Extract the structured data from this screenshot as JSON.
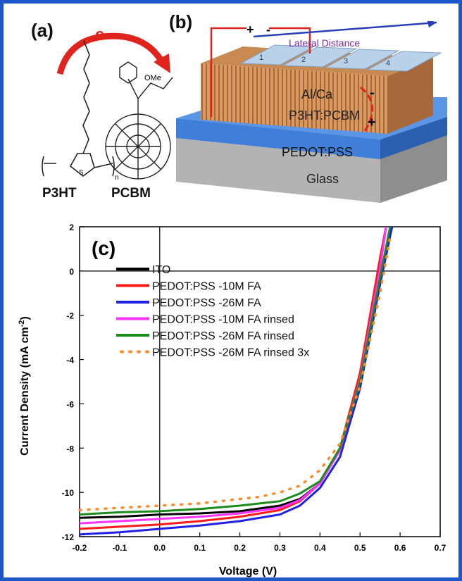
{
  "panel_a": {
    "label": "(a)",
    "arrow_text": "e-",
    "donor": "P3HT",
    "acceptor": "PCBM",
    "methyl_ester": "OMe",
    "ring_atom": "S",
    "repeat_n": "n"
  },
  "panel_b": {
    "label": "(b)",
    "plus": "+",
    "minus": "-",
    "lateral": "Lateral Distance",
    "electrode_numbers": [
      "1",
      "2",
      "3",
      "4"
    ],
    "top_layer": "Al/Ca",
    "active_layer": "P3HT:PCBM",
    "hole_layer": "PEDOT:PSS",
    "substrate": "Glass",
    "charge_minus": "-",
    "charge_plus": "+"
  },
  "chart_data": {
    "type": "line",
    "panel_label": "(c)",
    "xlabel": "Voltage (V)",
    "ylabel": "Current Density (mA cm",
    "ylabel_sup": "-2",
    "ylabel_close": ")",
    "xlim": [
      -0.2,
      0.7
    ],
    "ylim": [
      -12,
      2
    ],
    "xticks": [
      "-0.2",
      "-0.1",
      "0.0",
      "0.1",
      "0.2",
      "0.3",
      "0.4",
      "0.5",
      "0.6",
      "0.7"
    ],
    "yticks": [
      "2",
      "0",
      "-2",
      "-4",
      "-6",
      "-8",
      "-10",
      "-12"
    ],
    "legend_position": "upper-left",
    "series": [
      {
        "name": "ITO",
        "color": "#000000",
        "style": "solid",
        "x": [
          -0.2,
          -0.1,
          0.0,
          0.1,
          0.2,
          0.3,
          0.35,
          0.4,
          0.45,
          0.5,
          0.55,
          0.58
        ],
        "y": [
          -11.15,
          -11.1,
          -11.0,
          -10.95,
          -10.85,
          -10.6,
          -10.3,
          -9.6,
          -8.0,
          -4.9,
          -0.4,
          2.0
        ]
      },
      {
        "name": "PEDOT:PSS -10M FA",
        "color": "#ff1a1a",
        "style": "solid",
        "x": [
          -0.2,
          -0.1,
          0.0,
          0.1,
          0.2,
          0.3,
          0.35,
          0.4,
          0.45,
          0.5,
          0.55,
          0.565
        ],
        "y": [
          -11.65,
          -11.55,
          -11.45,
          -11.3,
          -11.1,
          -10.8,
          -10.4,
          -9.6,
          -8.0,
          -4.6,
          0.6,
          2.0
        ]
      },
      {
        "name": "PEDOT:PSS -26M FA",
        "color": "#1f1fe6",
        "style": "solid",
        "x": [
          -0.2,
          -0.1,
          0.0,
          0.1,
          0.2,
          0.3,
          0.35,
          0.4,
          0.45,
          0.5,
          0.55,
          0.58
        ],
        "y": [
          -11.9,
          -11.8,
          -11.65,
          -11.5,
          -11.3,
          -11.0,
          -10.6,
          -9.8,
          -8.4,
          -5.3,
          -0.6,
          2.0
        ]
      },
      {
        "name": "PEDOT:PSS -10M FA rinsed",
        "color": "#ff33ff",
        "style": "solid",
        "x": [
          -0.2,
          -0.1,
          0.0,
          0.1,
          0.2,
          0.3,
          0.35,
          0.4,
          0.45,
          0.5,
          0.55,
          0.565
        ],
        "y": [
          -11.4,
          -11.3,
          -11.2,
          -11.1,
          -10.95,
          -10.7,
          -10.35,
          -9.6,
          -8.1,
          -4.9,
          0.1,
          2.0
        ]
      },
      {
        "name": "PEDOT:PSS -26M FA rinsed",
        "color": "#1a8c1a",
        "style": "solid",
        "x": [
          -0.2,
          -0.1,
          0.0,
          0.1,
          0.2,
          0.3,
          0.35,
          0.4,
          0.45,
          0.5,
          0.55,
          0.575
        ],
        "y": [
          -11.0,
          -10.9,
          -10.85,
          -10.75,
          -10.6,
          -10.4,
          -10.05,
          -9.5,
          -8.0,
          -5.0,
          -0.3,
          2.0
        ]
      },
      {
        "name": "PEDOT:PSS -26M FA rinsed 3x",
        "color": "#ff8a2a",
        "style": "dotted",
        "x": [
          -0.2,
          -0.15,
          -0.1,
          -0.05,
          0.0,
          0.05,
          0.1,
          0.15,
          0.2,
          0.25,
          0.3,
          0.35,
          0.4,
          0.45,
          0.5,
          0.55,
          0.575
        ],
        "y": [
          -10.8,
          -10.75,
          -10.7,
          -10.65,
          -10.6,
          -10.55,
          -10.5,
          -10.4,
          -10.3,
          -10.2,
          -10.0,
          -9.7,
          -9.0,
          -7.8,
          -5.2,
          -1.0,
          1.5
        ]
      }
    ]
  }
}
